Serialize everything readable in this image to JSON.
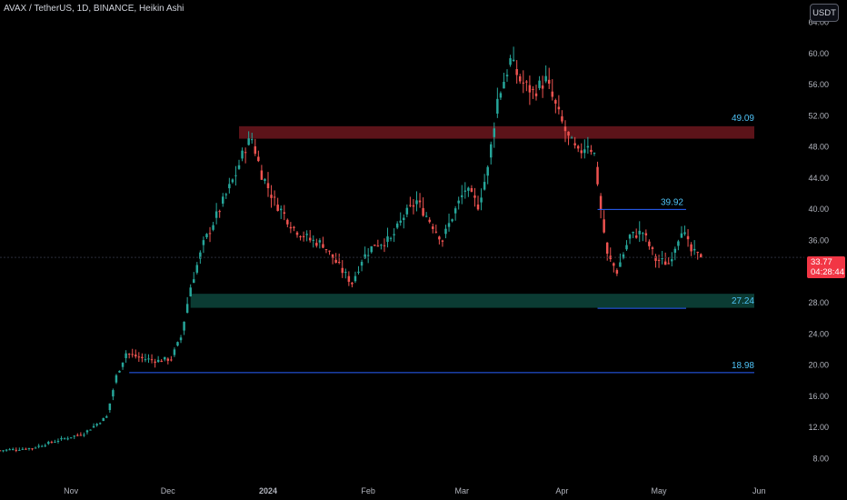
{
  "header": {
    "title": "AVAX / TetherUS, 1D, BINANCE, Heikin Ashi",
    "currency": "USDT"
  },
  "price_tag": {
    "price": "33.77",
    "countdown": "04:28:44"
  },
  "levels": [
    {
      "label": "49.09",
      "value": 49.09
    },
    {
      "label": "39.92",
      "value": 39.92
    },
    {
      "label": "27.24",
      "value": 27.24
    },
    {
      "label": "18.98",
      "value": 18.98
    }
  ],
  "zones": [
    {
      "name": "resistance-zone",
      "from": 49.0,
      "to": 50.6,
      "color": "#5c1319"
    },
    {
      "name": "support-zone",
      "from": 27.3,
      "to": 29.1,
      "color": "#0b3b33"
    }
  ],
  "colors": {
    "up": "#26a69a",
    "down": "#ef5350",
    "level_line": "#2962ff",
    "level_label": "#4fc3f7",
    "price_tag": "#f23645"
  },
  "chart_data": {
    "type": "candlestick",
    "title": "AVAX / TetherUS, 1D, BINANCE, Heikin Ashi",
    "y_ticks": [
      8,
      12,
      16,
      20,
      24,
      28,
      32,
      36,
      40,
      44,
      48,
      52,
      56,
      60,
      64
    ],
    "y_tick_labels": [
      "8.00",
      "12.00",
      "16.00",
      "20.00",
      "24.00",
      "28.00",
      "32.00",
      "36.00",
      "40.00",
      "44.00",
      "48.00",
      "52.00",
      "56.00",
      "60.00",
      "64.00"
    ],
    "ylim": [
      5.2,
      66.8
    ],
    "x_labels": [
      {
        "label": "Nov",
        "date": "2023-11-01",
        "bold": false
      },
      {
        "label": "Dec",
        "date": "2023-12-01",
        "bold": false
      },
      {
        "label": "2024",
        "date": "2024-01-01",
        "bold": true
      },
      {
        "label": "Feb",
        "date": "2024-02-01",
        "bold": false
      },
      {
        "label": "Mar",
        "date": "2024-03-01",
        "bold": false
      },
      {
        "label": "Apr",
        "date": "2024-04-01",
        "bold": false
      },
      {
        "label": "May",
        "date": "2024-05-01",
        "bold": false
      },
      {
        "label": "Jun",
        "date": "2024-06-01",
        "bold": false
      }
    ],
    "xlim": [
      "2023-10-10",
      "2024-06-15"
    ],
    "last_price": 33.77,
    "price_path": [
      [
        "2023-10-10",
        9.0
      ],
      [
        "2023-10-20",
        9.3
      ],
      [
        "2023-10-28",
        10.3
      ],
      [
        "2023-11-05",
        11.2
      ],
      [
        "2023-11-12",
        13.3
      ],
      [
        "2023-11-15",
        18.5
      ],
      [
        "2023-11-18",
        21.5
      ],
      [
        "2023-11-23",
        20.8
      ],
      [
        "2023-11-28",
        20.5
      ],
      [
        "2023-12-02",
        20.8
      ],
      [
        "2023-12-05",
        23.5
      ],
      [
        "2023-12-08",
        30.0
      ],
      [
        "2023-12-12",
        35.5
      ],
      [
        "2023-12-17",
        40.0
      ],
      [
        "2023-12-22",
        44.5
      ],
      [
        "2023-12-25",
        48.0
      ],
      [
        "2023-12-27",
        49.0
      ],
      [
        "2023-12-30",
        44.5
      ],
      [
        "2024-01-03",
        41.0
      ],
      [
        "2024-01-09",
        37.5
      ],
      [
        "2024-01-14",
        36.0
      ],
      [
        "2024-01-18",
        35.5
      ],
      [
        "2024-01-24",
        32.0
      ],
      [
        "2024-01-27",
        30.5
      ],
      [
        "2024-01-30",
        33.5
      ],
      [
        "2024-02-03",
        35.5
      ],
      [
        "2024-02-08",
        36.0
      ],
      [
        "2024-02-12",
        39.0
      ],
      [
        "2024-02-16",
        41.0
      ],
      [
        "2024-02-20",
        38.5
      ],
      [
        "2024-02-24",
        36.0
      ],
      [
        "2024-02-27",
        39.0
      ],
      [
        "2024-03-02",
        42.5
      ],
      [
        "2024-03-06",
        40.5
      ],
      [
        "2024-03-09",
        45.0
      ],
      [
        "2024-03-12",
        54.0
      ],
      [
        "2024-03-16",
        59.0
      ],
      [
        "2024-03-19",
        56.5
      ],
      [
        "2024-03-23",
        55.0
      ],
      [
        "2024-03-27",
        56.5
      ],
      [
        "2024-03-31",
        52.0
      ],
      [
        "2024-04-03",
        49.0
      ],
      [
        "2024-04-06",
        47.0
      ],
      [
        "2024-04-09",
        48.5
      ],
      [
        "2024-04-11",
        47.0
      ],
      [
        "2024-04-13",
        40.0
      ],
      [
        "2024-04-15",
        34.0
      ],
      [
        "2024-04-18",
        32.0
      ],
      [
        "2024-04-22",
        36.5
      ],
      [
        "2024-04-26",
        37.0
      ],
      [
        "2024-04-30",
        33.5
      ],
      [
        "2024-05-04",
        33.0
      ],
      [
        "2024-05-08",
        37.5
      ],
      [
        "2024-05-11",
        34.5
      ],
      [
        "2024-05-14",
        33.77
      ]
    ]
  }
}
